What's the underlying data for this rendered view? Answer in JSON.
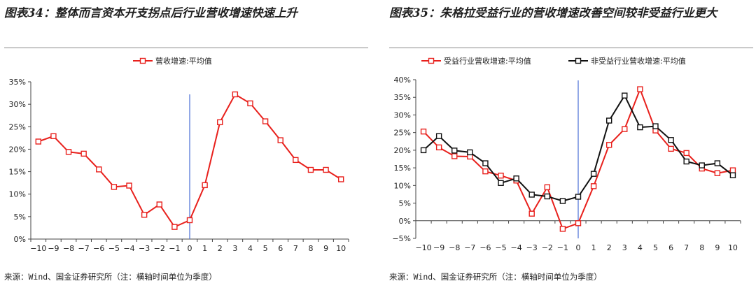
{
  "chart_data": [
    {
      "type": "line",
      "title": "图表34：整体而言资本开支拐点后行业营收增速快速上升",
      "source": "来源：Wind、国金证券研究所（注：横轴时间单位为季度）",
      "categories": [
        "−10",
        "−9",
        "−8",
        "−7",
        "−6",
        "−5",
        "−4",
        "−3",
        "−2",
        "−1",
        "0",
        "1",
        "2",
        "3",
        "4",
        "5",
        "6",
        "7",
        "8",
        "9",
        "10"
      ],
      "y_ticks": [
        "0%",
        "5%",
        "10%",
        "15%",
        "20%",
        "25%",
        "30%",
        "35%"
      ],
      "ylim": [
        0,
        35
      ],
      "legend_position": "top-center",
      "marker_line_at": "0",
      "series": [
        {
          "name": "营收增速:平均值",
          "color": "#e8201c",
          "values": [
            21.7,
            22.9,
            19.4,
            19.0,
            15.5,
            11.6,
            11.9,
            5.4,
            7.7,
            2.7,
            4.2,
            12.0,
            26.0,
            32.2,
            30.2,
            26.2,
            22.0,
            17.6,
            15.4,
            15.4,
            13.3
          ]
        }
      ]
    },
    {
      "type": "line",
      "title": "图表35：朱格拉受益行业的营收增速改善空间较非受益行业更大",
      "source": "来源：Wind、国金证券研究所（注：横轴时间单位为季度）",
      "categories": [
        "−10",
        "−9",
        "−8",
        "−7",
        "−6",
        "−5",
        "−4",
        "−3",
        "−2",
        "−1",
        "0",
        "1",
        "2",
        "3",
        "4",
        "5",
        "6",
        "7",
        "8",
        "9",
        "10"
      ],
      "y_ticks": [
        "−5%",
        "0%",
        "5%",
        "10%",
        "15%",
        "20%",
        "25%",
        "30%",
        "35%",
        "40%"
      ],
      "ylim": [
        -5,
        40
      ],
      "legend_position": "top-center",
      "marker_line_at": "0",
      "series": [
        {
          "name": "受益行业营收增速:平均值",
          "color": "#e8201c",
          "values": [
            25.3,
            20.8,
            18.3,
            18.2,
            14.0,
            12.8,
            11.4,
            2.0,
            9.5,
            -2.3,
            -0.7,
            9.8,
            21.5,
            26.0,
            37.3,
            25.6,
            20.4,
            19.2,
            14.8,
            13.5,
            14.3
          ]
        },
        {
          "name": "非受益行业营收增速:平均值",
          "color": "#111111",
          "values": [
            20.0,
            24.0,
            19.9,
            19.4,
            16.3,
            10.7,
            12.0,
            7.4,
            6.9,
            5.6,
            6.8,
            13.3,
            28.4,
            35.5,
            26.5,
            26.8,
            22.9,
            16.8,
            15.7,
            16.3,
            12.9
          ]
        }
      ]
    }
  ]
}
